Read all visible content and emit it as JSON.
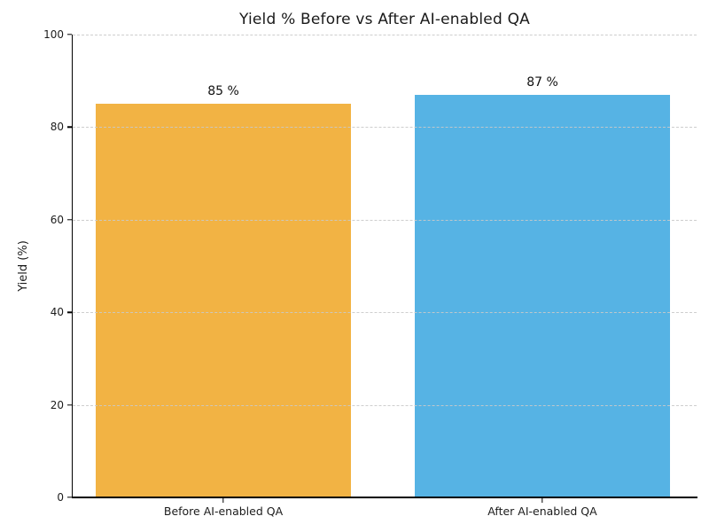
{
  "chart_data": {
    "type": "bar",
    "title": "Yield % Before vs After AI-enabled QA",
    "ylabel": "Yield (%)",
    "xlabel": "",
    "categories": [
      "Before AI-enabled QA",
      "After AI-enabled QA"
    ],
    "values": [
      85,
      87
    ],
    "value_labels": [
      "85 %",
      "87 %"
    ],
    "bar_colors": [
      "#F2B344",
      "#56B3E4"
    ],
    "ylim": [
      0,
      100
    ],
    "yticks": [
      0,
      20,
      40,
      60,
      80,
      100
    ],
    "grid": {
      "axis": "y",
      "style": "dashed",
      "color": "#C9C9C9",
      "above_bars": true
    },
    "background": "#FFFFFF",
    "text_color": "#1C1C1C"
  }
}
